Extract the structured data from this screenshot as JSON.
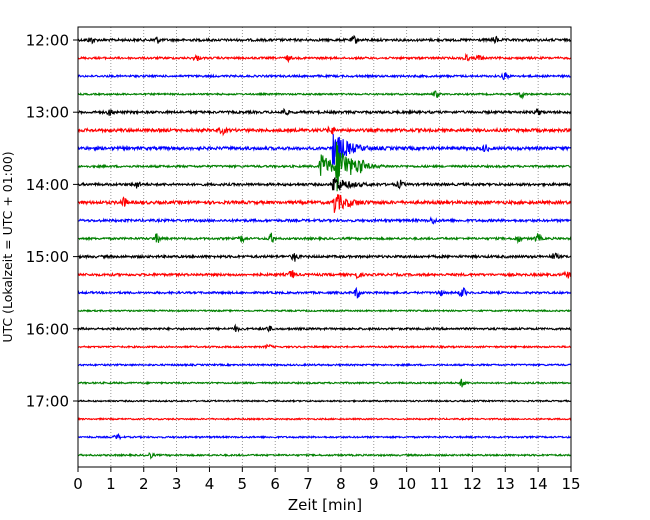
{
  "chart_data": {
    "type": "line",
    "title": "",
    "xlabel": "Zeit  [min]",
    "ylabel": "UTC (Lokalzeit = UTC + 01:00)",
    "xlim": [
      0,
      15
    ],
    "x_ticks": [
      "0",
      "1",
      "2",
      "3",
      "4",
      "5",
      "6",
      "7",
      "8",
      "9",
      "10",
      "11",
      "12",
      "13",
      "14",
      "15"
    ],
    "y_tick_labels": [
      "12:00",
      "13:00",
      "14:00",
      "15:00",
      "16:00",
      "17:00"
    ],
    "y_tick_rows": [
      0,
      4,
      8,
      12,
      16,
      20
    ],
    "grid": "vertical dotted",
    "color_cycle": [
      "#000000",
      "#ff0000",
      "#0000ff",
      "#008000"
    ],
    "rows": [
      {
        "start": "12:00",
        "color": "#000000",
        "noise": 1.2,
        "events": [
          [
            0.4,
            3
          ],
          [
            2.4,
            3
          ],
          [
            8.4,
            3.5
          ],
          [
            12.7,
            3
          ]
        ]
      },
      {
        "start": "12:15",
        "color": "#ff0000",
        "noise": 1.0,
        "events": [
          [
            3.6,
            2.5
          ],
          [
            6.4,
            2.5
          ],
          [
            11.8,
            3
          ],
          [
            12.2,
            2.5
          ]
        ]
      },
      {
        "start": "12:30",
        "color": "#0000ff",
        "noise": 1.0,
        "events": [
          [
            13.0,
            3.5
          ]
        ]
      },
      {
        "start": "12:45",
        "color": "#008000",
        "noise": 0.8,
        "events": [
          [
            10.9,
            3
          ],
          [
            13.5,
            3.5
          ]
        ]
      },
      {
        "start": "13:00",
        "color": "#000000",
        "noise": 1.2,
        "events": [
          [
            1.0,
            3
          ],
          [
            6.3,
            3
          ],
          [
            14.0,
            2.5
          ]
        ]
      },
      {
        "start": "13:15",
        "color": "#ff0000",
        "noise": 1.5,
        "events": [
          [
            4.4,
            3
          ],
          [
            7.7,
            4
          ]
        ]
      },
      {
        "start": "13:30",
        "color": "#0000ff",
        "noise": 1.5,
        "events": [
          [
            7.8,
            18
          ],
          [
            12.4,
            3
          ]
        ]
      },
      {
        "start": "13:45",
        "color": "#008000",
        "noise": 1.0,
        "events": [
          [
            7.4,
            13
          ],
          [
            7.9,
            22
          ],
          [
            8.6,
            6
          ]
        ]
      },
      {
        "start": "14:00",
        "color": "#000000",
        "noise": 1.2,
        "events": [
          [
            1.8,
            3.5
          ],
          [
            7.8,
            8
          ],
          [
            9.8,
            3.5
          ]
        ]
      },
      {
        "start": "14:15",
        "color": "#ff0000",
        "noise": 1.5,
        "events": [
          [
            1.4,
            4
          ],
          [
            7.8,
            10
          ]
        ]
      },
      {
        "start": "14:30",
        "color": "#0000ff",
        "noise": 1.2,
        "events": [
          [
            10.8,
            3
          ]
        ]
      },
      {
        "start": "14:45",
        "color": "#008000",
        "noise": 1.0,
        "events": [
          [
            2.4,
            4.5
          ],
          [
            5.0,
            3
          ],
          [
            5.9,
            5
          ],
          [
            13.4,
            3
          ],
          [
            14.0,
            4.5
          ]
        ]
      },
      {
        "start": "15:00",
        "color": "#000000",
        "noise": 1.2,
        "events": [
          [
            6.6,
            4.5
          ],
          [
            14.5,
            3
          ]
        ]
      },
      {
        "start": "15:15",
        "color": "#ff0000",
        "noise": 1.2,
        "events": [
          [
            6.5,
            4
          ],
          [
            8.5,
            3
          ],
          [
            14.9,
            3
          ]
        ]
      },
      {
        "start": "15:30",
        "color": "#0000ff",
        "noise": 1.0,
        "events": [
          [
            8.5,
            5
          ],
          [
            11.0,
            3
          ],
          [
            11.7,
            5
          ]
        ]
      },
      {
        "start": "15:45",
        "color": "#008000",
        "noise": 0.7,
        "events": []
      },
      {
        "start": "16:00",
        "color": "#000000",
        "noise": 1.0,
        "events": [
          [
            4.8,
            2.5
          ],
          [
            5.8,
            2.5
          ]
        ]
      },
      {
        "start": "16:15",
        "color": "#ff0000",
        "noise": 0.8,
        "events": [
          [
            5.8,
            2
          ]
        ]
      },
      {
        "start": "16:30",
        "color": "#0000ff",
        "noise": 0.8,
        "events": []
      },
      {
        "start": "16:45",
        "color": "#008000",
        "noise": 0.8,
        "events": [
          [
            11.7,
            4
          ]
        ]
      },
      {
        "start": "17:00",
        "color": "#000000",
        "noise": 0.7,
        "events": []
      },
      {
        "start": "17:15",
        "color": "#ff0000",
        "noise": 0.7,
        "events": []
      },
      {
        "start": "17:30",
        "color": "#0000ff",
        "noise": 0.8,
        "events": [
          [
            1.2,
            2.5
          ]
        ]
      },
      {
        "start": "17:45",
        "color": "#008000",
        "noise": 0.8,
        "events": [
          [
            2.2,
            2.5
          ]
        ]
      }
    ]
  }
}
